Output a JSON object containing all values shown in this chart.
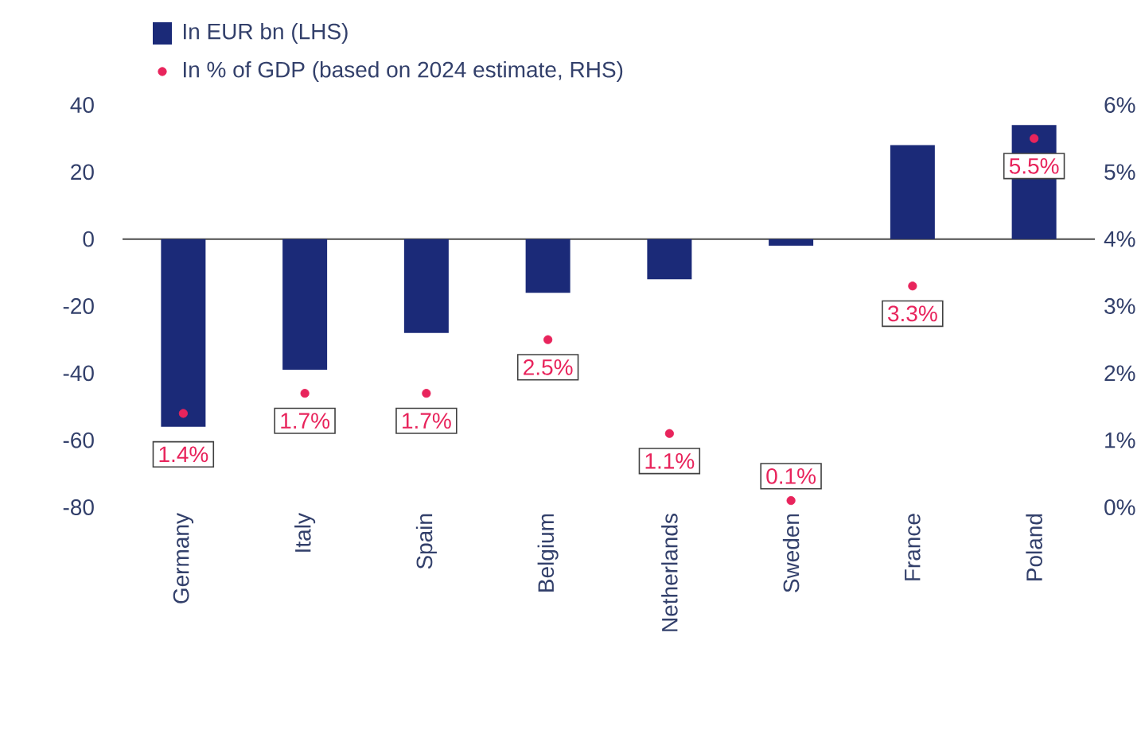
{
  "chart_data": {
    "type": "bar",
    "categories": [
      "Germany",
      "Italy",
      "Spain",
      "Belgium",
      "Netherlands",
      "Sweden",
      "France",
      "Poland"
    ],
    "series": [
      {
        "name": "In EUR bn (LHS)",
        "color": "#1b2a78",
        "values": [
          -56,
          -39,
          -28,
          -16,
          -12,
          -2,
          28,
          34
        ]
      },
      {
        "name": "In % of GDP (based on 2024 estimate, RHS)",
        "type": "scatter",
        "axis": "y2",
        "color": "#e8245c",
        "values": [
          1.4,
          1.7,
          1.7,
          2.5,
          1.1,
          0.1,
          3.3,
          5.5
        ],
        "value_labels": [
          "1.4%",
          "1.7%",
          "1.7%",
          "2.5%",
          "1.1%",
          "0.1%",
          "3.3%",
          "5.5%"
        ]
      }
    ],
    "ylim": [
      -80,
      40
    ],
    "yticks": [
      -80,
      -60,
      -40,
      -20,
      0,
      20,
      40
    ],
    "y2lim": [
      0,
      6
    ],
    "y2ticks": [
      {
        "value": 0,
        "label": "0%"
      },
      {
        "value": 1,
        "label": "1%"
      },
      {
        "value": 2,
        "label": "2%"
      },
      {
        "value": 3,
        "label": "3%"
      },
      {
        "value": 4,
        "label": "4%"
      },
      {
        "value": 5,
        "label": "5%"
      },
      {
        "value": 6,
        "label": "6%"
      }
    ],
    "marker": "circle",
    "legend": "top left"
  }
}
